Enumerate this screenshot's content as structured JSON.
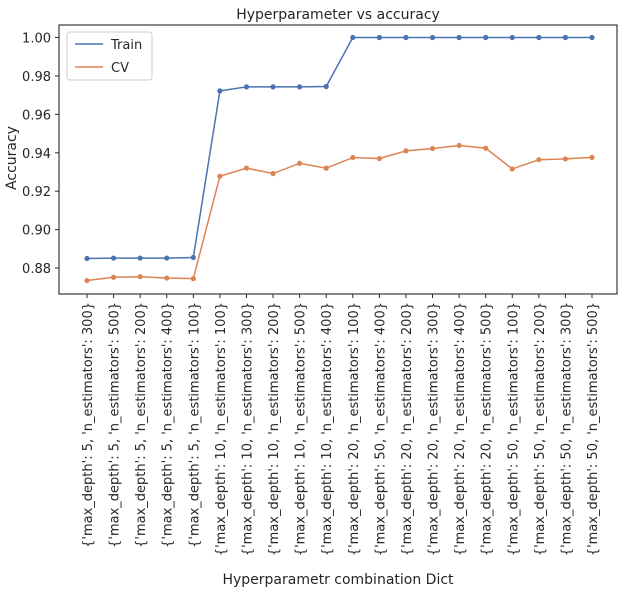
{
  "chart_data": {
    "type": "line",
    "title": "Hyperparameter vs accuracy",
    "xlabel": "Hyperparametr combination Dict",
    "ylabel": "Accuracy",
    "categories": [
      "{'max_depth': 5, 'n_estimators': 300}",
      "{'max_depth': 5, 'n_estimators': 500}",
      "{'max_depth': 5, 'n_estimators': 200}",
      "{'max_depth': 5, 'n_estimators': 400}",
      "{'max_depth': 5, 'n_estimators': 100}",
      "{'max_depth': 10, 'n_estimators': 100}",
      "{'max_depth': 10, 'n_estimators': 300}",
      "{'max_depth': 10, 'n_estimators': 200}",
      "{'max_depth': 10, 'n_estimators': 500}",
      "{'max_depth': 10, 'n_estimators': 400}",
      "{'max_depth': 20, 'n_estimators': 100}",
      "{'max_depth': 50, 'n_estimators': 400}",
      "{'max_depth': 20, 'n_estimators': 200}",
      "{'max_depth': 20, 'n_estimators': 300}",
      "{'max_depth': 20, 'n_estimators': 400}",
      "{'max_depth': 20, 'n_estimators': 500}",
      "{'max_depth': 50, 'n_estimators': 100}",
      "{'max_depth': 50, 'n_estimators': 200}",
      "{'max_depth': 50, 'n_estimators': 300}",
      "{'max_depth': 50, 'n_estimators': 500}"
    ],
    "series": [
      {
        "name": "Train",
        "color": "#4c72b0",
        "values": [
          0.885,
          0.8852,
          0.8852,
          0.8852,
          0.8855,
          0.9722,
          0.9743,
          0.9743,
          0.9743,
          0.9745,
          1.0,
          1.0,
          1.0,
          1.0,
          1.0,
          1.0,
          1.0,
          1.0,
          1.0,
          1.0
        ]
      },
      {
        "name": "CV",
        "color": "#dd8452",
        "values": [
          0.8735,
          0.8752,
          0.8755,
          0.8748,
          0.8745,
          0.9278,
          0.932,
          0.9292,
          0.9345,
          0.932,
          0.9375,
          0.937,
          0.941,
          0.9422,
          0.9438,
          0.9424,
          0.9316,
          0.9364,
          0.9368,
          0.9376
        ]
      }
    ],
    "yticks": [
      0.88,
      0.9,
      0.92,
      0.94,
      0.96,
      0.98,
      1.0
    ],
    "ylim": [
      0.8665,
      1.0065
    ],
    "grid": false,
    "legend_position": "top-left"
  }
}
